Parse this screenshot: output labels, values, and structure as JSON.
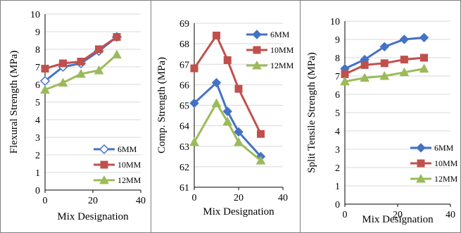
{
  "colors": {
    "blue": "#4472c4",
    "red": "#c0504d",
    "green": "#9bbb59",
    "axis": "#000000",
    "grid": "#d9d9d9",
    "border": "#7f7f7f"
  },
  "chart_data": [
    {
      "type": "line",
      "title": "",
      "xlabel": "Mix Designation",
      "ylabel": "Flexural Strength (MPa)",
      "xlim": [
        0,
        40
      ],
      "ylim": [
        0,
        10
      ],
      "xticks": [
        0,
        20,
        40
      ],
      "yticks": [
        0,
        1,
        2,
        3,
        4,
        5,
        6,
        7,
        8,
        9,
        10
      ],
      "grid": true,
      "legend_position": "bottom-right",
      "series": [
        {
          "name": "6MM",
          "color": "#4472c4",
          "marker": "diamond-open",
          "x": [
            0,
            7.5,
            15,
            22.5,
            30
          ],
          "y": [
            6.2,
            7.0,
            7.2,
            7.9,
            8.7
          ]
        },
        {
          "name": "10MM",
          "color": "#c0504d",
          "marker": "square",
          "x": [
            0,
            7.5,
            15,
            22.5,
            30
          ],
          "y": [
            6.9,
            7.2,
            7.3,
            8.0,
            8.7
          ]
        },
        {
          "name": "12MM",
          "color": "#9bbb59",
          "marker": "triangle",
          "x": [
            0,
            7.5,
            15,
            22.5,
            30
          ],
          "y": [
            5.7,
            6.1,
            6.6,
            6.8,
            7.7
          ]
        }
      ]
    },
    {
      "type": "line",
      "title": "",
      "xlabel": "Mix Designation",
      "ylabel": "Comp. Strength (MPa)",
      "xlim": [
        0,
        40
      ],
      "ylim": [
        61,
        69
      ],
      "xticks": [
        0,
        20,
        40
      ],
      "yticks": [
        61,
        62,
        63,
        64,
        65,
        66,
        67,
        68,
        69
      ],
      "grid": true,
      "legend_position": "top-right",
      "series": [
        {
          "name": "6MM",
          "color": "#4472c4",
          "marker": "diamond",
          "x": [
            0,
            10,
            15,
            20,
            30
          ],
          "y": [
            65.1,
            66.1,
            64.7,
            63.7,
            62.5
          ]
        },
        {
          "name": "10MM",
          "color": "#c0504d",
          "marker": "square",
          "x": [
            0,
            10,
            15,
            20,
            30
          ],
          "y": [
            66.8,
            68.4,
            67.2,
            65.8,
            63.6
          ]
        },
        {
          "name": "12MM",
          "color": "#9bbb59",
          "marker": "triangle",
          "x": [
            0,
            10,
            15,
            20,
            30
          ],
          "y": [
            63.2,
            65.1,
            64.2,
            63.2,
            62.3
          ]
        }
      ]
    },
    {
      "type": "line",
      "title": "",
      "xlabel": "Mix Designation",
      "ylabel": "Split Tensile Strength (MPa)",
      "xlim": [
        0,
        40
      ],
      "ylim": [
        0,
        10
      ],
      "xticks": [
        0,
        20,
        40
      ],
      "yticks": [
        0,
        1,
        2,
        3,
        4,
        5,
        6,
        7,
        8,
        9,
        10
      ],
      "grid": true,
      "legend_position": "bottom-right",
      "series": [
        {
          "name": "6MM",
          "color": "#4472c4",
          "marker": "diamond",
          "x": [
            0,
            7.5,
            15,
            22.5,
            30
          ],
          "y": [
            7.4,
            7.9,
            8.6,
            9.0,
            9.1
          ]
        },
        {
          "name": "10MM",
          "color": "#c0504d",
          "marker": "square",
          "x": [
            0,
            7.5,
            15,
            22.5,
            30
          ],
          "y": [
            7.1,
            7.6,
            7.7,
            7.9,
            8.0
          ]
        },
        {
          "name": "12MM",
          "color": "#9bbb59",
          "marker": "triangle",
          "x": [
            0,
            7.5,
            15,
            22.5,
            30
          ],
          "y": [
            6.7,
            6.9,
            7.0,
            7.2,
            7.4
          ]
        }
      ]
    }
  ]
}
